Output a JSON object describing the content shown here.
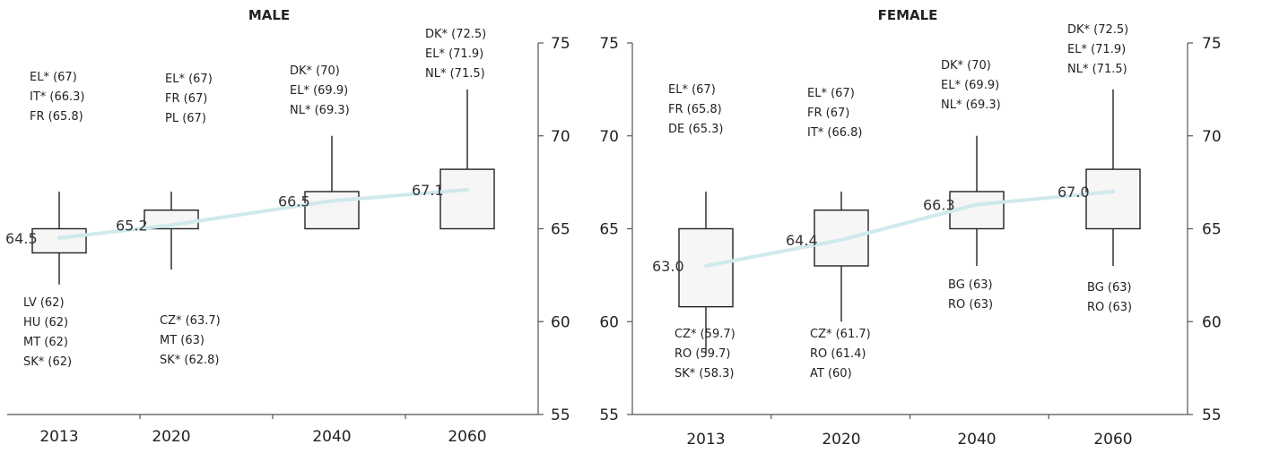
{
  "chart_data": [
    {
      "type": "box",
      "title": "MALE",
      "categories": [
        "2013",
        "2020",
        "2040",
        "2060"
      ],
      "ylim": [
        55,
        75
      ],
      "yticks": [
        "55",
        "60",
        "65",
        "70",
        "75"
      ],
      "boxes": [
        {
          "low": 62,
          "q1": 63.7,
          "q3": 65,
          "high": 67
        },
        {
          "low": 62.8,
          "q1": 65,
          "q3": 66,
          "high": 67
        },
        {
          "low": 65,
          "q1": 65,
          "q3": 67,
          "high": 70
        },
        {
          "low": 65,
          "q1": 65,
          "q3": 68.2,
          "high": 72.5
        }
      ],
      "means": [
        64.5,
        65.2,
        66.5,
        67.1
      ],
      "mean_labels": [
        "64.5",
        "65.2",
        "66.5",
        "67.1"
      ],
      "top_annotations": [
        [
          "EL* (67)",
          "IT* (66.3)",
          "FR (65.8)"
        ],
        [
          "EL* (67)",
          "FR (67)",
          "PL (67)"
        ],
        [
          "DK* (70)",
          "EL* (69.9)",
          "NL* (69.3)"
        ],
        [
          "DK* (72.5)",
          "EL* (71.9)",
          "NL* (71.5)"
        ]
      ],
      "bottom_annotations": [
        [
          "LV (62)",
          "HU (62)",
          "MT (62)",
          "SK* (62)"
        ],
        [
          "CZ* (63.7)",
          "MT (63)",
          "SK* (62.8)"
        ],
        [],
        []
      ],
      "trend_color": "#cfe9ec",
      "box_fill": "#f6f6f6"
    },
    {
      "type": "box",
      "title": "FEMALE",
      "categories": [
        "2013",
        "2020",
        "2040",
        "2060"
      ],
      "ylim": [
        55,
        75
      ],
      "yticks": [
        "55",
        "60",
        "65",
        "70",
        "75"
      ],
      "right_yticks": [
        "55",
        "60",
        "65",
        "70",
        "75"
      ],
      "boxes": [
        {
          "low": 58.3,
          "q1": 60.8,
          "q3": 65,
          "high": 67
        },
        {
          "low": 60,
          "q1": 63,
          "q3": 66,
          "high": 67
        },
        {
          "low": 63,
          "q1": 65,
          "q3": 67,
          "high": 70
        },
        {
          "low": 63,
          "q1": 65,
          "q3": 68.2,
          "high": 72.5
        }
      ],
      "means": [
        63.0,
        64.4,
        66.3,
        67.0
      ],
      "mean_labels": [
        "63.0",
        "64.4",
        "66.3",
        "67.0"
      ],
      "top_annotations": [
        [
          "EL* (67)",
          "FR (65.8)",
          "DE (65.3)"
        ],
        [
          "EL* (67)",
          "FR (67)",
          "IT* (66.8)"
        ],
        [
          "DK* (70)",
          "EL* (69.9)",
          "NL* (69.3)"
        ],
        [
          "DK* (72.5)",
          "EL* (71.9)",
          "NL* (71.5)"
        ]
      ],
      "bottom_annotations": [
        [
          "CZ* (59.7)",
          "RO (59.7)",
          "SK* (58.3)"
        ],
        [
          "CZ* (61.7)",
          "RO (61.4)",
          "AT (60)"
        ],
        [
          "BG (63)",
          "RO (63)"
        ],
        [
          "BG (63)",
          "RO (63)"
        ]
      ],
      "trend_color": "#cfe9ec",
      "box_fill": "#f6f6f6"
    }
  ]
}
